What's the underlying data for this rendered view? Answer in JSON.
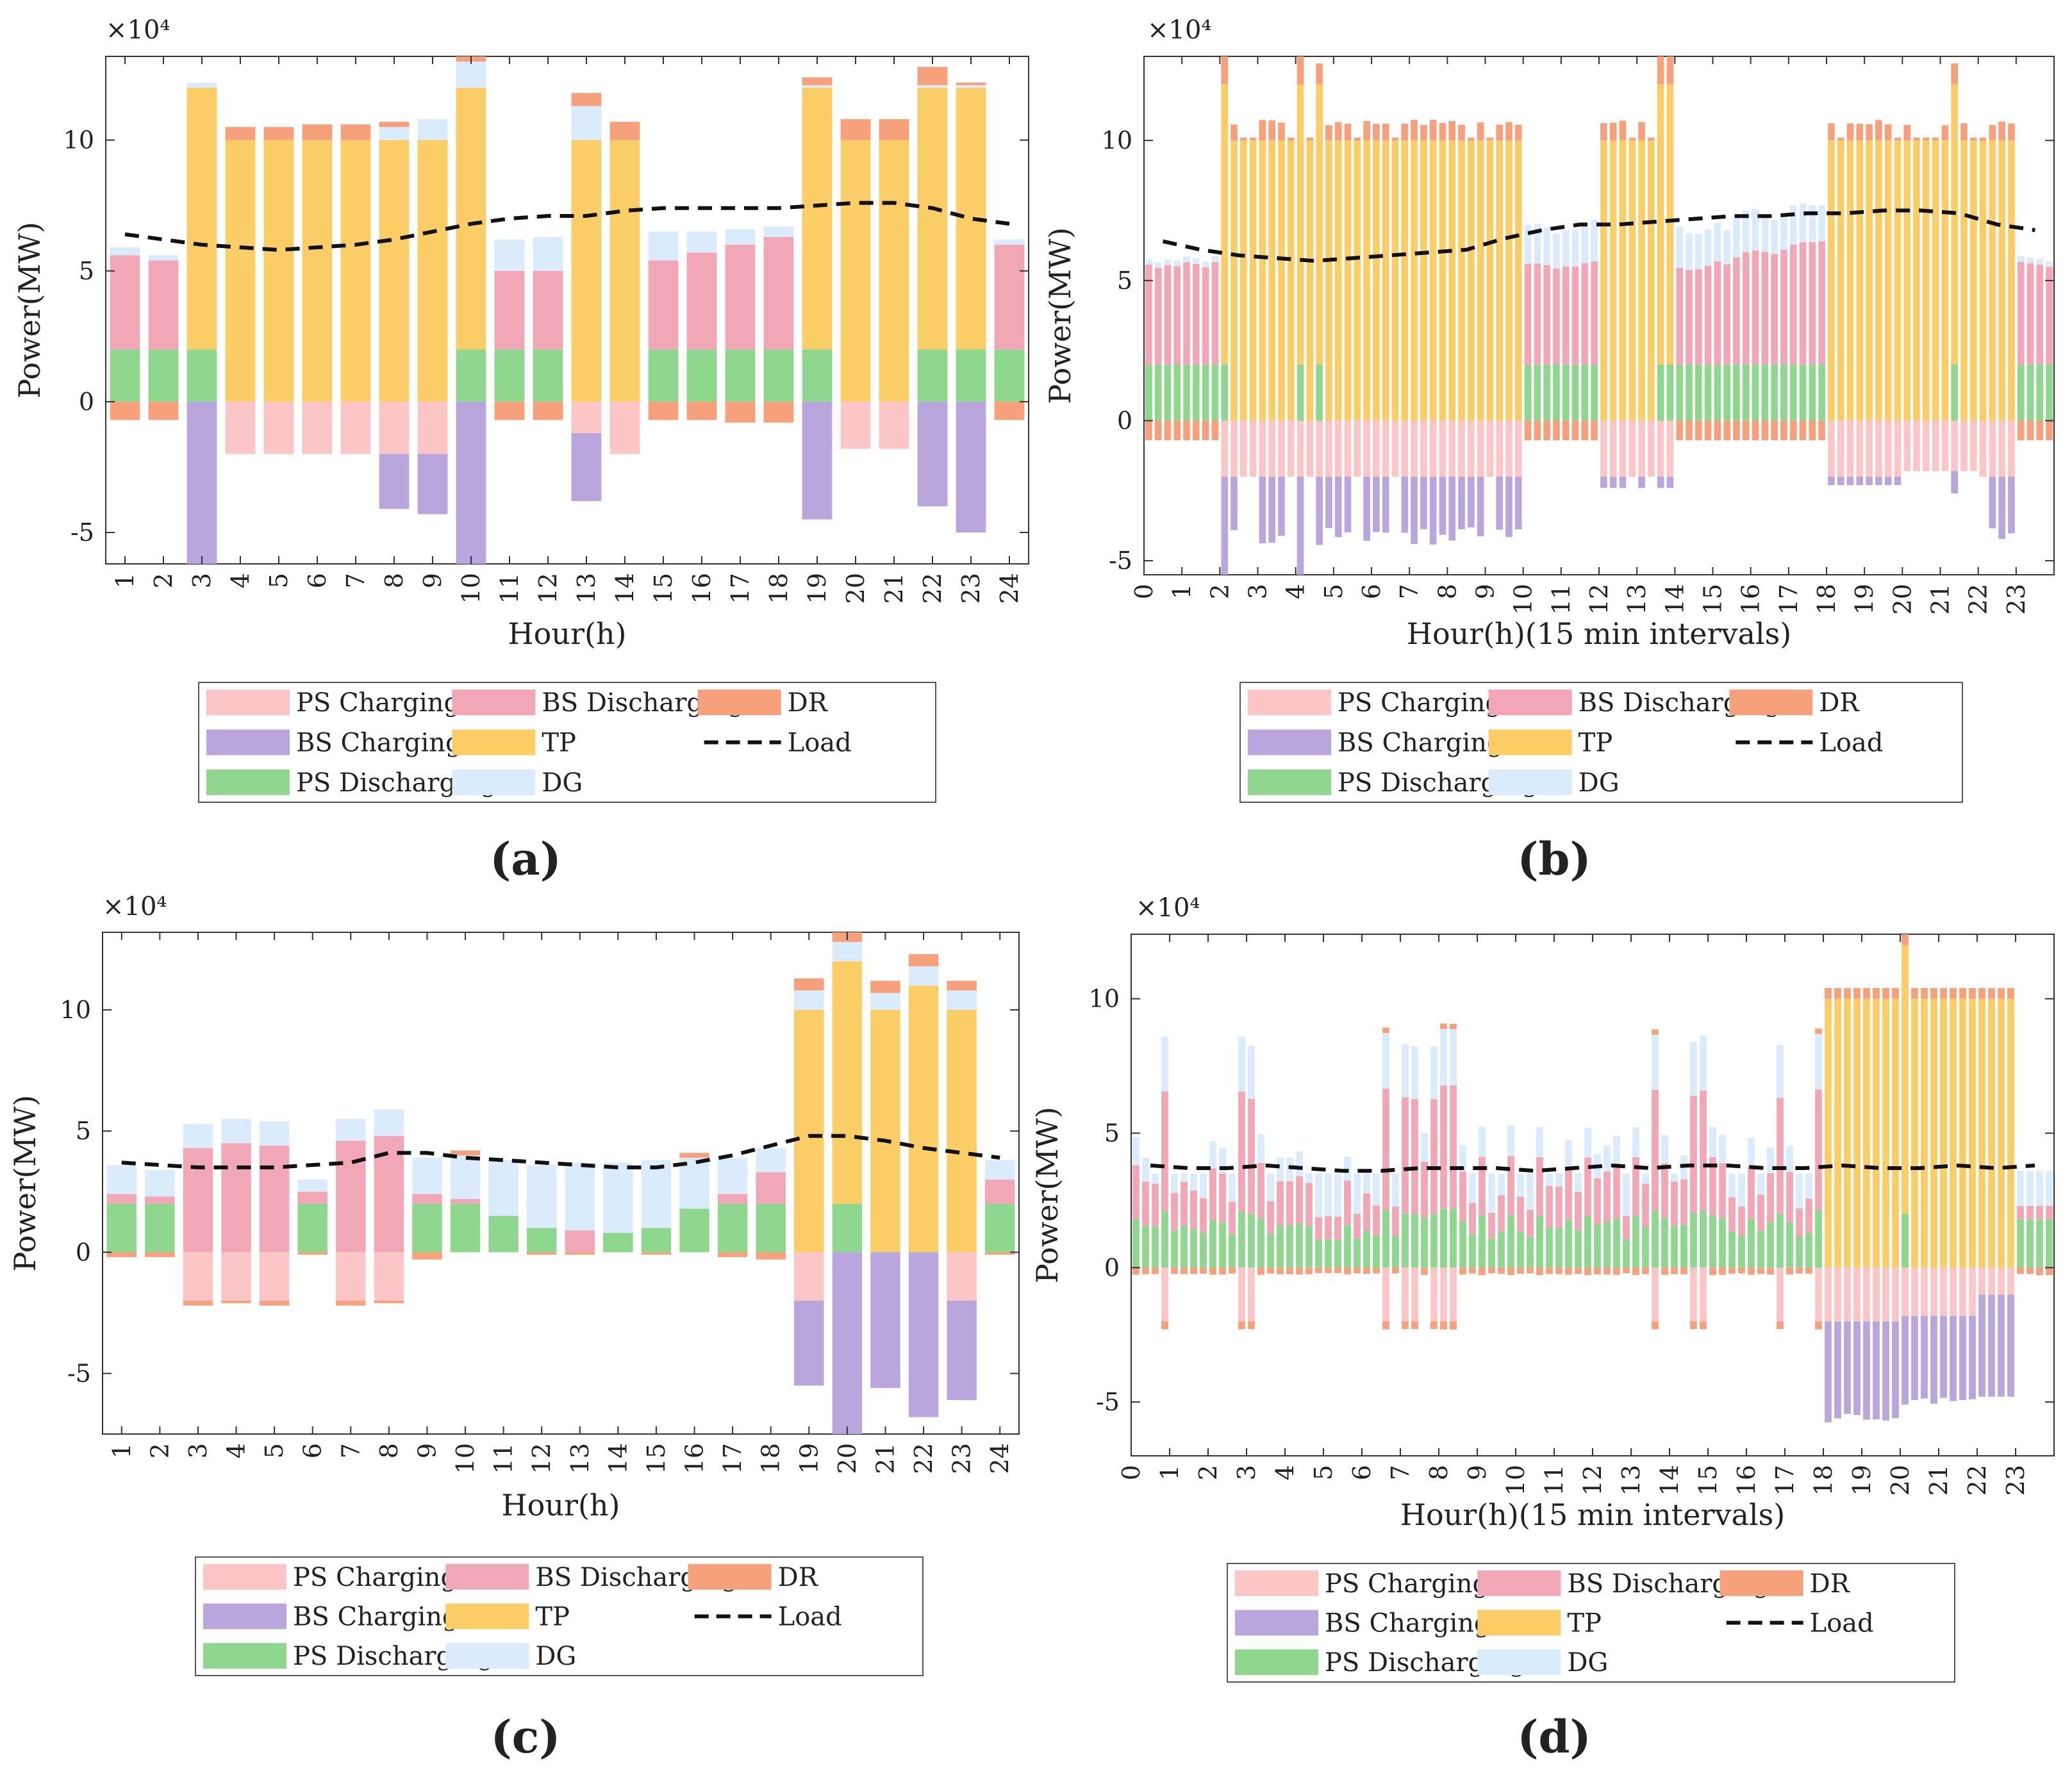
{
  "figure": {
    "panel_labels": [
      "(a)",
      "(b)",
      "(c)",
      "(d)"
    ],
    "legend_entries": [
      "PS Charging",
      "BS Discharging",
      "DR",
      "BS Charging",
      "TP",
      "Load",
      "PS Discharging",
      "DG"
    ]
  },
  "chart_data": [
    {
      "type": "bar",
      "panel": "(a)",
      "xlabel": "Hour(h)",
      "ylabel": "Power(MW)",
      "y_multiplier": "×10⁴",
      "x_ticks": [
        "1",
        "2",
        "3",
        "4",
        "5",
        "6",
        "7",
        "8",
        "9",
        "10",
        "11",
        "12",
        "13",
        "14",
        "15",
        "16",
        "17",
        "18",
        "19",
        "20",
        "21",
        "22",
        "23",
        "24"
      ],
      "y_ticks": [
        "-5",
        "0",
        "5",
        "10"
      ],
      "ylim": [
        -6.2,
        13.2
      ],
      "stacked": true,
      "series": [
        {
          "name": "PS Discharging",
          "color": "#8fd68f",
          "values": [
            2,
            2,
            2,
            0,
            0,
            0,
            0,
            0,
            0,
            2,
            2,
            2,
            0,
            0,
            2,
            2,
            2,
            2,
            2,
            0,
            0,
            2,
            2,
            2
          ]
        },
        {
          "name": "BS Discharging",
          "color": "#f2a7b6",
          "values": [
            3.6,
            3.4,
            0,
            0,
            0,
            0,
            0,
            0,
            0,
            0,
            3,
            3,
            0,
            0,
            3.4,
            3.7,
            4,
            4.3,
            0,
            0,
            0,
            0,
            0,
            4
          ]
        },
        {
          "name": "TP",
          "color": "#fbcd66",
          "values": [
            0,
            0,
            10,
            10,
            10,
            10,
            10,
            10,
            10,
            10,
            0,
            0,
            10,
            10,
            0,
            0,
            0,
            0,
            10,
            10,
            10,
            10,
            10,
            0
          ]
        },
        {
          "name": "DG",
          "color": "#daecfb",
          "values": [
            0.3,
            0.2,
            0.2,
            0,
            0,
            0,
            0,
            0.5,
            0.8,
            1,
            1.2,
            1.3,
            1.3,
            0,
            1.1,
            0.8,
            0.6,
            0.4,
            0.1,
            0,
            0,
            0.1,
            0.1,
            0.2
          ]
        },
        {
          "name": "DR",
          "color": "#f7a07c",
          "values": [
            0,
            0,
            0,
            0.5,
            0.5,
            0.6,
            0.6,
            0.2,
            0,
            0.3,
            0,
            0,
            0.5,
            0.7,
            0,
            0,
            0,
            0,
            0.3,
            0.8,
            0.8,
            0.7,
            0.1,
            0
          ]
        },
        {
          "name": "PS Charging",
          "color": "#fdc6c6",
          "values": [
            0,
            0,
            0,
            -2,
            -2,
            -2,
            -2,
            -2,
            -2,
            0,
            0,
            0,
            -1.2,
            -2,
            0,
            0,
            0,
            0,
            0,
            -1.8,
            -1.8,
            0,
            0,
            0
          ]
        },
        {
          "name": "BS Charging",
          "color": "#b9a6dc",
          "values": [
            0,
            0,
            -6.2,
            0,
            0,
            0,
            0,
            -2.1,
            -2.3,
            -6.2,
            0,
            0,
            -2.6,
            0,
            0,
            0,
            0,
            0,
            -4.5,
            0,
            0,
            -4,
            -5,
            0
          ]
        },
        {
          "name": "DR",
          "color": "#f7a07c",
          "values": [
            -0.7,
            -0.7,
            0,
            0,
            0,
            0,
            0,
            0,
            0,
            0,
            -0.7,
            -0.7,
            0,
            0,
            -0.7,
            -0.7,
            -0.8,
            -0.8,
            0,
            0,
            0,
            0,
            0,
            -0.7
          ]
        }
      ],
      "load": {
        "name": "Load",
        "values": [
          6.4,
          6.2,
          6.0,
          5.9,
          5.8,
          5.9,
          6.0,
          6.2,
          6.5,
          6.8,
          7.0,
          7.1,
          7.1,
          7.3,
          7.4,
          7.4,
          7.4,
          7.4,
          7.5,
          7.6,
          7.6,
          7.4,
          7.0,
          6.8
        ]
      }
    },
    {
      "type": "bar",
      "panel": "(b)",
      "xlabel": "Hour(h)(15 min intervals)",
      "ylabel": "Power(MW)",
      "y_multiplier": "×10⁴",
      "x_ticks": [
        "0",
        "1",
        "2",
        "3",
        "4",
        "5",
        "6",
        "7",
        "8",
        "9",
        "10",
        "11",
        "12",
        "13",
        "14",
        "15",
        "16",
        "17",
        "18",
        "19",
        "20",
        "21",
        "22",
        "23"
      ],
      "y_ticks": [
        "-5",
        "0",
        "5",
        "10"
      ],
      "ylim": [
        -5.5,
        13.0
      ],
      "stacked": true,
      "pattern_note": "96 intervals; BS discharging + PS discharging blocks in hours 0-2, 10-12, 14-18, 23; TP ~10 in hours 2-10, 12-14, 18-23",
      "load_hourly": [
        6.4,
        6.1,
        5.9,
        5.8,
        5.7,
        5.8,
        5.9,
        6.0,
        6.1,
        6.5,
        6.8,
        7.0,
        7.0,
        7.1,
        7.2,
        7.3,
        7.3,
        7.4,
        7.4,
        7.5,
        7.5,
        7.4,
        7.0,
        6.8
      ]
    },
    {
      "type": "bar",
      "panel": "(c)",
      "xlabel": "Hour(h)",
      "ylabel": "Power(MW)",
      "y_multiplier": "×10⁴",
      "x_ticks": [
        "1",
        "2",
        "3",
        "4",
        "5",
        "6",
        "7",
        "8",
        "9",
        "10",
        "11",
        "12",
        "13",
        "14",
        "15",
        "16",
        "17",
        "18",
        "19",
        "20",
        "21",
        "22",
        "23",
        "24"
      ],
      "y_ticks": [
        "-5",
        "0",
        "5",
        "10"
      ],
      "ylim": [
        -7.5,
        13.2
      ],
      "stacked": true,
      "series": [
        {
          "name": "PS Discharging",
          "color": "#8fd68f",
          "values": [
            2,
            2,
            0,
            0,
            0,
            2,
            0,
            0,
            2,
            2,
            1.5,
            1,
            0,
            0.8,
            1,
            1.8,
            2,
            2,
            0,
            2,
            0,
            0,
            0,
            2
          ]
        },
        {
          "name": "BS Discharging",
          "color": "#f2a7b6",
          "values": [
            0.4,
            0.3,
            4.3,
            4.5,
            4.4,
            0.5,
            4.6,
            4.8,
            0.4,
            0.2,
            0,
            0,
            0.9,
            0,
            0,
            0,
            0.4,
            1.3,
            0,
            0,
            0,
            0,
            0,
            1
          ]
        },
        {
          "name": "TP",
          "color": "#fbcd66",
          "values": [
            0,
            0,
            0,
            0,
            0,
            0,
            0,
            0,
            0,
            0,
            0,
            0,
            0,
            0,
            0,
            0,
            0,
            0,
            10,
            10,
            10,
            11,
            10,
            0
          ]
        },
        {
          "name": "DG",
          "color": "#daecfb",
          "values": [
            1.2,
            1.1,
            1,
            1,
            1,
            0.5,
            0.9,
            1.1,
            1.5,
            1.8,
            2.3,
            2.6,
            2.8,
            2.9,
            2.8,
            2.1,
            1.5,
            1,
            0.8,
            0.8,
            0.7,
            0.8,
            0.8,
            0.8
          ]
        },
        {
          "name": "DR",
          "color": "#f7a07c",
          "values": [
            0,
            0,
            0,
            0,
            0,
            0,
            0,
            0,
            0,
            0.2,
            0,
            0,
            0,
            0,
            0,
            0.2,
            0,
            0,
            0.5,
            0.6,
            0.5,
            0.5,
            0.4,
            0
          ]
        },
        {
          "name": "PS Charging",
          "color": "#fdc6c6",
          "values": [
            0,
            0,
            -2,
            -2,
            -2,
            0,
            -2,
            -2,
            0,
            0,
            0,
            0,
            0,
            0,
            0,
            0,
            0,
            0,
            -2,
            0,
            0,
            0,
            -2,
            0
          ]
        },
        {
          "name": "BS Charging",
          "color": "#b9a6dc",
          "values": [
            0,
            0,
            0,
            0,
            0,
            0,
            0,
            0,
            0,
            0,
            0,
            0,
            0,
            0,
            0,
            0,
            0,
            0,
            -3.5,
            -7.5,
            -5.6,
            -6.8,
            -4.1,
            0
          ]
        },
        {
          "name": "DR",
          "color": "#f7a07c",
          "values": [
            -0.2,
            -0.2,
            -0.2,
            -0.1,
            -0.2,
            -0.1,
            -0.2,
            -0.1,
            -0.3,
            0,
            0,
            -0.1,
            -0.1,
            0,
            -0.1,
            0,
            -0.2,
            -0.3,
            0,
            0,
            0,
            0,
            0,
            -0.1
          ]
        }
      ],
      "load": {
        "name": "Load",
        "values": [
          3.7,
          3.6,
          3.5,
          3.5,
          3.5,
          3.6,
          3.7,
          4.1,
          4.1,
          3.9,
          3.8,
          3.7,
          3.6,
          3.5,
          3.5,
          3.7,
          4.0,
          4.4,
          4.8,
          4.8,
          4.6,
          4.3,
          4.1,
          3.9
        ]
      }
    },
    {
      "type": "bar",
      "panel": "(d)",
      "xlabel": "Hour(h)(15 min intervals)",
      "ylabel": "Power(MW)",
      "y_multiplier": "×10⁴",
      "x_ticks": [
        "0",
        "1",
        "2",
        "3",
        "4",
        "5",
        "6",
        "7",
        "8",
        "9",
        "10",
        "11",
        "12",
        "13",
        "14",
        "15",
        "16",
        "17",
        "18",
        "19",
        "20",
        "21",
        "22",
        "23"
      ],
      "y_ticks": [
        "-5",
        "0",
        "5",
        "10"
      ],
      "ylim": [
        -7.0,
        12.4
      ],
      "stacked": true,
      "pattern_note": "96 intervals; hours 0-18 dominated by PS/BS discharging + DG around load 3.7; hours 18-23 TP ~10 with BS charging ~-5",
      "load_hourly": [
        3.8,
        3.7,
        3.7,
        3.8,
        3.7,
        3.6,
        3.6,
        3.7,
        3.7,
        3.7,
        3.6,
        3.7,
        3.8,
        3.7,
        3.8,
        3.8,
        3.7,
        3.7,
        3.8,
        3.7,
        3.7,
        3.8,
        3.7,
        3.8
      ]
    }
  ],
  "legend": {
    "items": [
      {
        "label": "PS Charging",
        "swatch": "bar",
        "color": "#fdc6c6"
      },
      {
        "label": "BS Discharging",
        "swatch": "bar",
        "color": "#f2a7b6"
      },
      {
        "label": "DR",
        "swatch": "bar",
        "color": "#f7a07c"
      },
      {
        "label": "BS Charging",
        "swatch": "bar",
        "color": "#b9a6dc"
      },
      {
        "label": "TP",
        "swatch": "bar",
        "color": "#fbcd66"
      },
      {
        "label": "Load",
        "swatch": "line",
        "color": "#111111"
      },
      {
        "label": "PS Discharging",
        "swatch": "bar",
        "color": "#8fd68f"
      },
      {
        "label": "DG",
        "swatch": "bar",
        "color": "#daecfb"
      }
    ]
  }
}
